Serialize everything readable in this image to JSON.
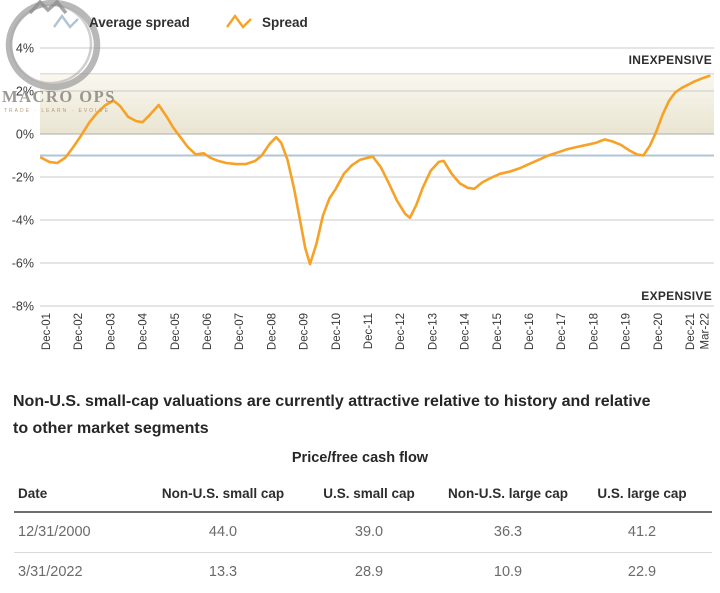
{
  "chart": {
    "legend": [
      {
        "label": "Average spread",
        "color": "#AFC4D4"
      },
      {
        "label": "Spread",
        "color": "#F6A227"
      }
    ],
    "annotations": {
      "top_right": "INEXPENSIVE",
      "bottom_right": "EXPENSIVE"
    },
    "watermark": {
      "brand": "MACRO OPS",
      "tagline": "TRADE · LEARN · EVOLVE"
    }
  },
  "chart_data": {
    "type": "line",
    "title": "",
    "xlabel": "",
    "ylabel": "",
    "ylim": [
      -8,
      4
    ],
    "grid": true,
    "legend_position": "top-left",
    "yticks": [
      {
        "v": 4,
        "label": "4%"
      },
      {
        "v": 2,
        "label": "2%"
      },
      {
        "v": 0,
        "label": "0%"
      },
      {
        "v": -2,
        "label": "-2%"
      },
      {
        "v": -4,
        "label": "-4%"
      },
      {
        "v": -6,
        "label": "-6%"
      },
      {
        "v": -8,
        "label": "-8%"
      }
    ],
    "xticks": [
      {
        "t": 0,
        "label": "Dec-01"
      },
      {
        "t": 1,
        "label": "Dec-02"
      },
      {
        "t": 2,
        "label": "Dec-03"
      },
      {
        "t": 3,
        "label": "Dec-04"
      },
      {
        "t": 4,
        "label": "Dec-05"
      },
      {
        "t": 5,
        "label": "Dec-06"
      },
      {
        "t": 6,
        "label": "Dec-07"
      },
      {
        "t": 7,
        "label": "Dec-08"
      },
      {
        "t": 8,
        "label": "Dec-09"
      },
      {
        "t": 9,
        "label": "Dec-10"
      },
      {
        "t": 10,
        "label": "Dec-11"
      },
      {
        "t": 11,
        "label": "Dec-12"
      },
      {
        "t": 12,
        "label": "Dec-13"
      },
      {
        "t": 13,
        "label": "Dec-14"
      },
      {
        "t": 14,
        "label": "Dec-15"
      },
      {
        "t": 15,
        "label": "Dec-16"
      },
      {
        "t": 16,
        "label": "Dec-17"
      },
      {
        "t": 17,
        "label": "Dec-18"
      },
      {
        "t": 18,
        "label": "Dec-19"
      },
      {
        "t": 19,
        "label": "Dec-20"
      },
      {
        "t": 20,
        "label": "Dec-21"
      },
      {
        "t": 20.45,
        "label": "Mar-22"
      }
    ],
    "band": {
      "from": 0,
      "to": 2.8,
      "fill_top": "#f9f7ef",
      "fill_bottom": "#eae5d2",
      "edge": "#d6d2c2"
    },
    "series": [
      {
        "name": "Average spread",
        "type": "constant",
        "value": -1.0,
        "color": "#AFC4D4",
        "width": 2
      },
      {
        "name": "Spread",
        "type": "points",
        "color": "#F6A227",
        "width": 2.6,
        "points": [
          [
            -0.15,
            -1.1
          ],
          [
            0.1,
            -1.3
          ],
          [
            0.35,
            -1.35
          ],
          [
            0.6,
            -1.1
          ],
          [
            0.85,
            -0.6
          ],
          [
            1.1,
            -0.05
          ],
          [
            1.35,
            0.55
          ],
          [
            1.6,
            1.0
          ],
          [
            1.85,
            1.35
          ],
          [
            2.1,
            1.55
          ],
          [
            2.3,
            1.3
          ],
          [
            2.55,
            0.8
          ],
          [
            2.8,
            0.6
          ],
          [
            3.0,
            0.55
          ],
          [
            3.2,
            0.85
          ],
          [
            3.5,
            1.35
          ],
          [
            3.75,
            0.8
          ],
          [
            3.95,
            0.3
          ],
          [
            4.15,
            -0.1
          ],
          [
            4.4,
            -0.6
          ],
          [
            4.65,
            -0.95
          ],
          [
            4.9,
            -0.9
          ],
          [
            5.1,
            -1.1
          ],
          [
            5.35,
            -1.25
          ],
          [
            5.6,
            -1.35
          ],
          [
            5.9,
            -1.4
          ],
          [
            6.2,
            -1.4
          ],
          [
            6.5,
            -1.25
          ],
          [
            6.7,
            -1.0
          ],
          [
            6.95,
            -0.45
          ],
          [
            7.15,
            -0.15
          ],
          [
            7.3,
            -0.4
          ],
          [
            7.5,
            -1.2
          ],
          [
            7.7,
            -2.5
          ],
          [
            7.9,
            -4.1
          ],
          [
            8.05,
            -5.3
          ],
          [
            8.2,
            -6.05
          ],
          [
            8.4,
            -5.1
          ],
          [
            8.6,
            -3.8
          ],
          [
            8.8,
            -3.0
          ],
          [
            9.0,
            -2.55
          ],
          [
            9.25,
            -1.85
          ],
          [
            9.5,
            -1.45
          ],
          [
            9.75,
            -1.2
          ],
          [
            10.0,
            -1.1
          ],
          [
            10.15,
            -1.05
          ],
          [
            10.4,
            -1.55
          ],
          [
            10.65,
            -2.3
          ],
          [
            10.9,
            -3.1
          ],
          [
            11.15,
            -3.7
          ],
          [
            11.3,
            -3.9
          ],
          [
            11.5,
            -3.3
          ],
          [
            11.7,
            -2.5
          ],
          [
            11.95,
            -1.7
          ],
          [
            12.2,
            -1.3
          ],
          [
            12.35,
            -1.25
          ],
          [
            12.6,
            -1.85
          ],
          [
            12.85,
            -2.3
          ],
          [
            13.1,
            -2.5
          ],
          [
            13.3,
            -2.55
          ],
          [
            13.55,
            -2.25
          ],
          [
            13.8,
            -2.05
          ],
          [
            14.1,
            -1.85
          ],
          [
            14.4,
            -1.75
          ],
          [
            14.7,
            -1.6
          ],
          [
            15.0,
            -1.4
          ],
          [
            15.3,
            -1.2
          ],
          [
            15.6,
            -1.0
          ],
          [
            15.9,
            -0.85
          ],
          [
            16.2,
            -0.7
          ],
          [
            16.5,
            -0.6
          ],
          [
            16.8,
            -0.5
          ],
          [
            17.1,
            -0.4
          ],
          [
            17.35,
            -0.25
          ],
          [
            17.6,
            -0.35
          ],
          [
            17.85,
            -0.5
          ],
          [
            18.1,
            -0.75
          ],
          [
            18.35,
            -0.95
          ],
          [
            18.55,
            -1.0
          ],
          [
            18.75,
            -0.55
          ],
          [
            18.95,
            0.1
          ],
          [
            19.15,
            0.9
          ],
          [
            19.35,
            1.55
          ],
          [
            19.55,
            1.95
          ],
          [
            19.75,
            2.15
          ],
          [
            19.95,
            2.3
          ],
          [
            20.15,
            2.45
          ],
          [
            20.4,
            2.6
          ],
          [
            20.6,
            2.7
          ]
        ]
      }
    ]
  },
  "note": {
    "lines": [
      "Non-U.S. small-cap valuations are currently attractive relative to history and relative",
      "to other market segments"
    ]
  },
  "table": {
    "title": "Price/free cash flow",
    "columns": [
      "Date",
      "Non-U.S. small cap",
      "U.S. small cap",
      "Non-U.S. large cap",
      "U.S. large cap"
    ],
    "rows": [
      {
        "date": "12/31/2000",
        "values": [
          "44.0",
          "39.0",
          "36.3",
          "41.2"
        ]
      },
      {
        "date": "3/31/2022",
        "values": [
          "13.3",
          "28.9",
          "10.9",
          "22.9"
        ]
      }
    ]
  }
}
